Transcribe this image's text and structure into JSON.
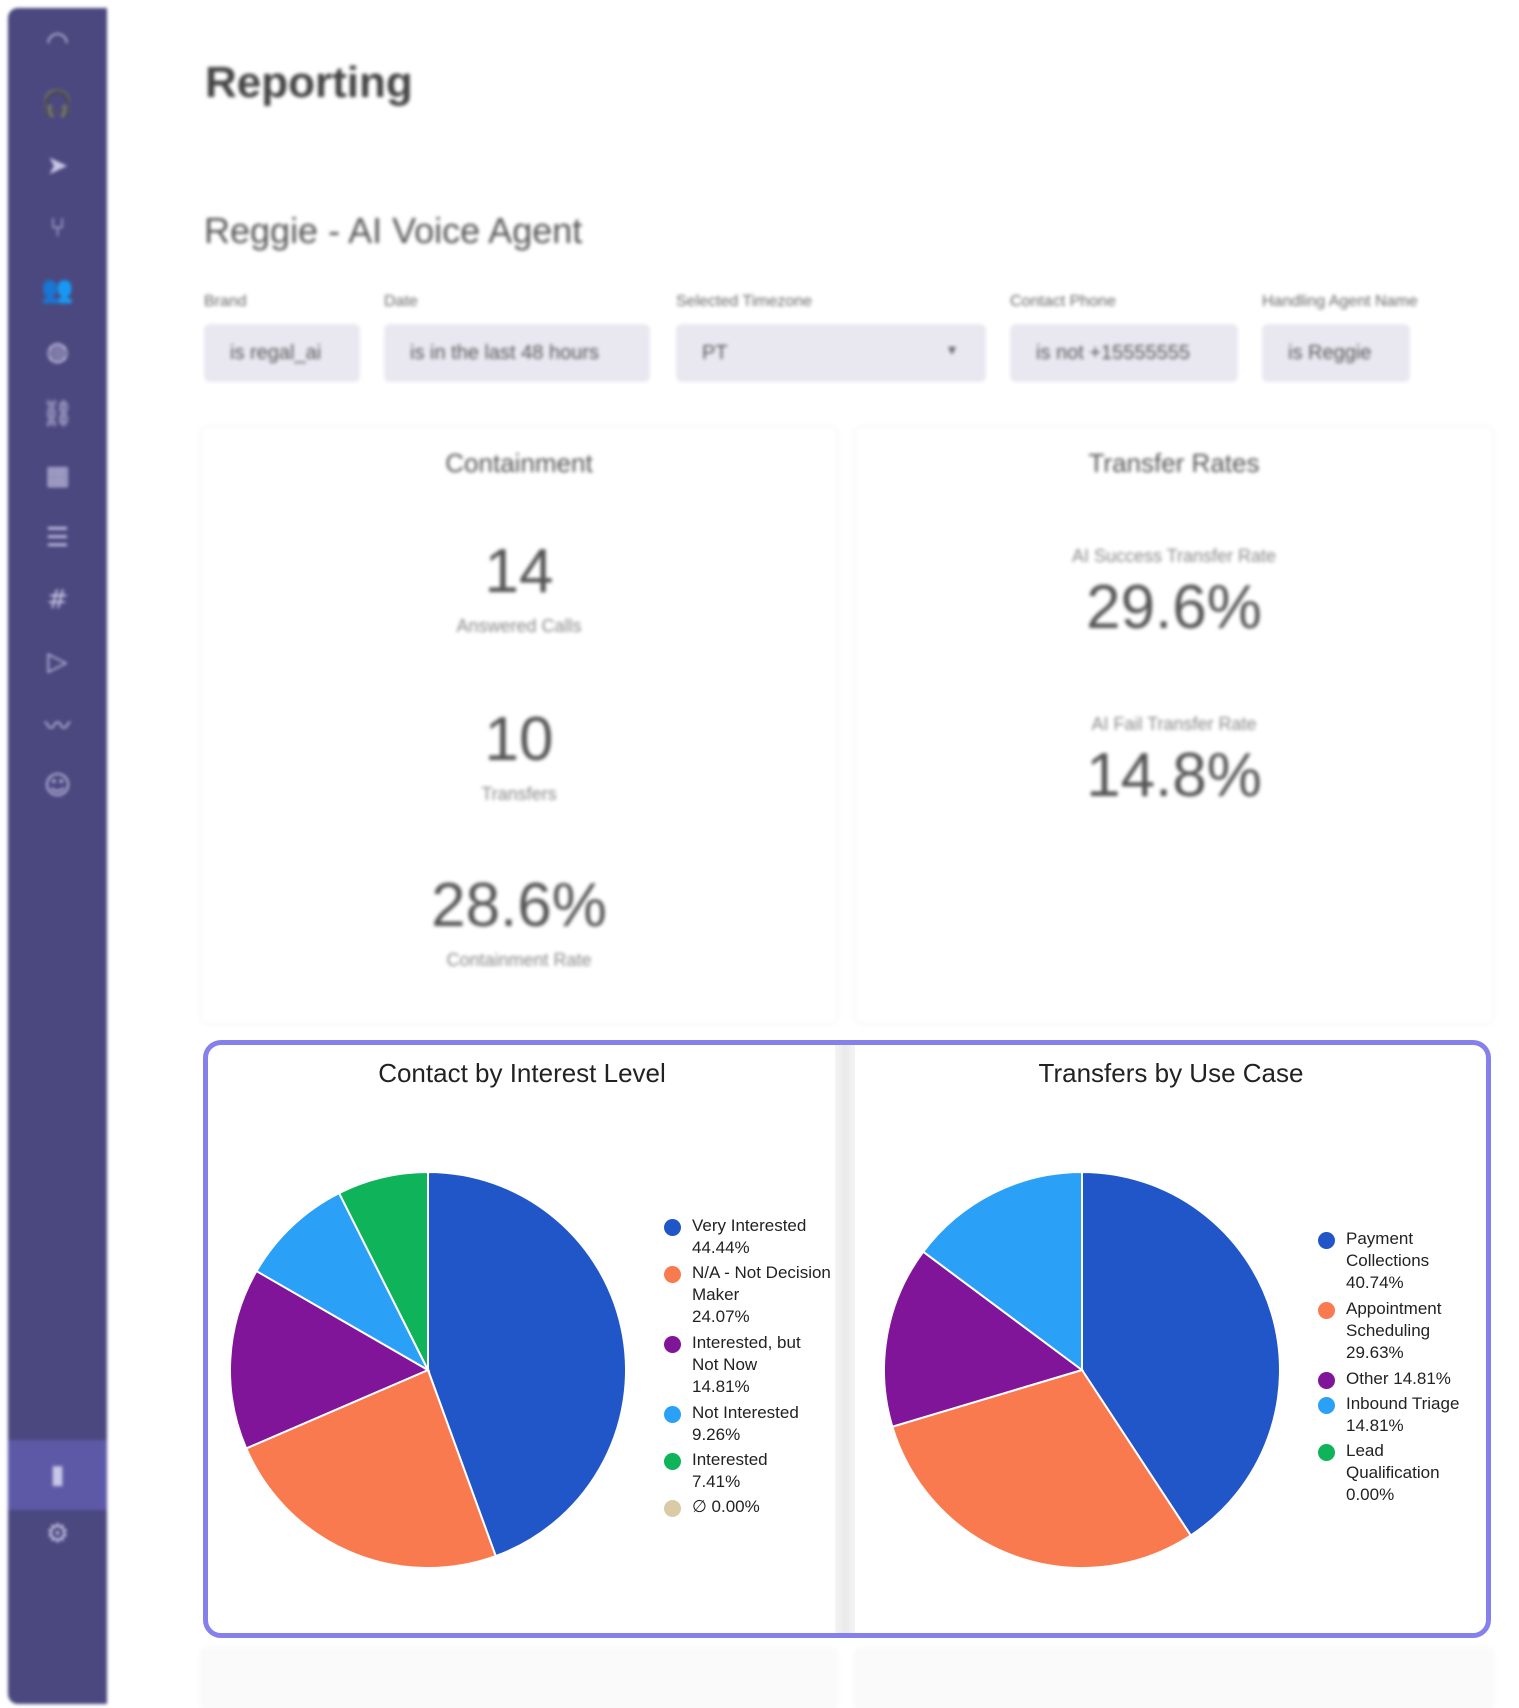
{
  "sidebar": {
    "items": [
      {
        "icon": "dashboard-icon",
        "glyph": "◠"
      },
      {
        "icon": "headset-icon",
        "glyph": "🎧"
      },
      {
        "icon": "send-icon",
        "glyph": "➤"
      },
      {
        "icon": "branch-icon",
        "glyph": "⑂"
      },
      {
        "icon": "users-icon",
        "glyph": "👥"
      },
      {
        "icon": "globe-icon",
        "glyph": "◍"
      },
      {
        "icon": "link-icon",
        "glyph": "⛓"
      },
      {
        "icon": "calendar-icon",
        "glyph": "▦"
      },
      {
        "icon": "list-icon",
        "glyph": "☰"
      },
      {
        "icon": "hash-icon",
        "glyph": "#"
      },
      {
        "icon": "play-icon",
        "glyph": "▷"
      },
      {
        "icon": "audio-wave-icon",
        "glyph": "〰"
      },
      {
        "icon": "bot-icon",
        "glyph": "☺"
      },
      {
        "icon": "bar-chart-icon",
        "glyph": "▮"
      },
      {
        "icon": "settings-icon",
        "glyph": "⚙"
      }
    ],
    "active_color": "#5d59a6",
    "background": "#4b4880"
  },
  "header": {
    "title": "Reporting",
    "agent": "Reggie - AI Voice Agent"
  },
  "filters": [
    {
      "label": "Brand",
      "value": "is regal_ai"
    },
    {
      "label": "Date",
      "value": "is in the last 48 hours"
    },
    {
      "label": "Selected Timezone",
      "value": "PT"
    },
    {
      "label": "Contact Phone",
      "value": "is not +15555555"
    },
    {
      "label": "Handling Agent Name",
      "value": "is Reggie"
    }
  ],
  "containment": {
    "title": "Containment",
    "answered_value": "14",
    "answered_label": "Answered Calls",
    "transfers_value": "10",
    "transfers_label": "Transfers",
    "rate_value": "28.6%",
    "rate_label": "Containment Rate"
  },
  "transfer_rates": {
    "title": "Transfer Rates",
    "success_label": "AI Success Transfer Rate",
    "success_value": "29.6%",
    "fail_label": "AI Fail Transfer Rate",
    "fail_value": "14.8%"
  },
  "chart_data": [
    {
      "type": "pie",
      "title": "Contact by Interest Level",
      "slices": [
        {
          "label": "Very Interested",
          "value": 44.44,
          "display": "44.44%",
          "color": "#2156c8"
        },
        {
          "label": "N/A - Not Decision Maker",
          "value": 24.07,
          "display": "24.07%",
          "color": "#fa7a50"
        },
        {
          "label": "Interested, but Not Now",
          "value": 14.81,
          "display": "14.81%",
          "color": "#80159a"
        },
        {
          "label": "Not Interested",
          "value": 9.26,
          "display": "9.26%",
          "color": "#2aa1f7"
        },
        {
          "label": "Interested",
          "value": 7.41,
          "display": "7.41%",
          "color": "#0eb35a"
        },
        {
          "label": "∅",
          "value": 0.0,
          "display": "0.00%",
          "color": "#dbcaa6"
        }
      ],
      "legend": "right"
    },
    {
      "type": "pie",
      "title": "Transfers by Use Case",
      "slices": [
        {
          "label": "Payment Collections",
          "value": 40.74,
          "display": "40.74%",
          "color": "#2156c8"
        },
        {
          "label": "Appointment Scheduling",
          "value": 29.63,
          "display": "29.63%",
          "color": "#fa7a50"
        },
        {
          "label": "Other",
          "value": 14.81,
          "display": "14.81%",
          "color": "#80159a"
        },
        {
          "label": "Inbound Triage",
          "value": 14.81,
          "display": "14.81%",
          "color": "#2aa1f7"
        },
        {
          "label": "Lead Qualification",
          "value": 0.0,
          "display": "0.00%",
          "color": "#0eb35a"
        }
      ],
      "legend": "right"
    }
  ]
}
